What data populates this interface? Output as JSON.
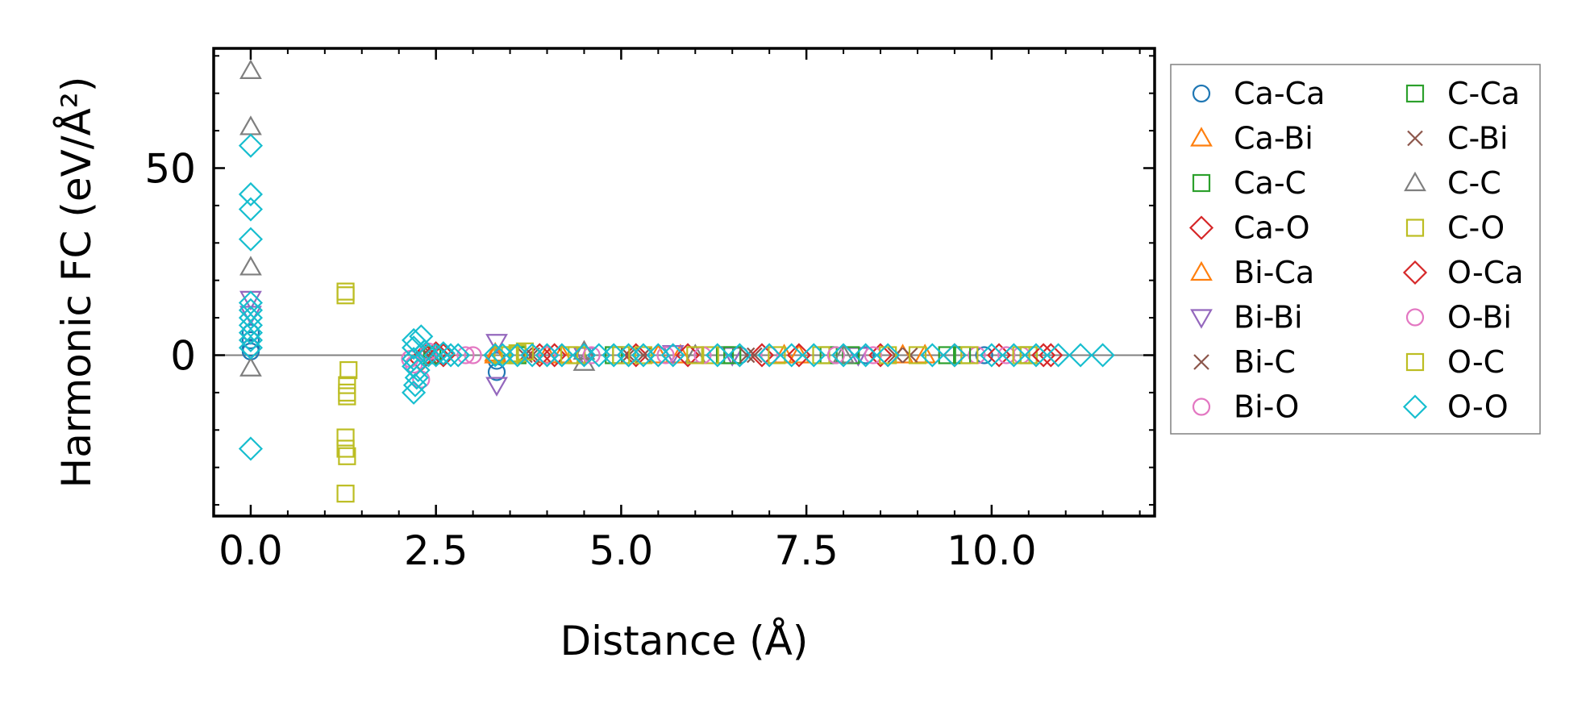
{
  "chart_data": {
    "type": "scatter",
    "title": "",
    "xlabel": "Distance (Å)",
    "ylabel": "Harmonic FC (eV/Å²)",
    "xlim": [
      -0.5,
      12.2
    ],
    "ylim": [
      -43,
      82
    ],
    "x_ticks": [
      0.0,
      2.5,
      5.0,
      7.5,
      10.0
    ],
    "x_tick_labels": [
      "0.0",
      "2.5",
      "5.0",
      "7.5",
      "10.0"
    ],
    "y_ticks": [
      0,
      50
    ],
    "y_tick_labels": [
      "0",
      "50"
    ],
    "zero_line": true,
    "grid": false,
    "legend_position": "outside-right",
    "series": [
      {
        "name": "Ca-Ca",
        "marker": "circle",
        "color": "#1f77b4",
        "points": [
          [
            0,
            4
          ],
          [
            0,
            2
          ],
          [
            0,
            6
          ],
          [
            0,
            1
          ],
          [
            3.32,
            -4.5
          ],
          [
            3.32,
            -1.5
          ],
          [
            4.5,
            0
          ],
          [
            6.6,
            0
          ],
          [
            8.3,
            0
          ],
          [
            9.9,
            0
          ]
        ]
      },
      {
        "name": "Ca-Bi",
        "marker": "triangle-up",
        "color": "#ff7f0e",
        "points": [
          [
            3.3,
            0.5
          ],
          [
            4.0,
            0
          ],
          [
            5.5,
            0
          ],
          [
            7.2,
            0
          ],
          [
            8.8,
            0
          ]
        ]
      },
      {
        "name": "Ca-C",
        "marker": "square",
        "color": "#2ca02c",
        "points": [
          [
            2.45,
            0
          ],
          [
            3.6,
            0
          ],
          [
            5.0,
            0
          ],
          [
            6.4,
            0
          ],
          [
            7.8,
            0
          ],
          [
            9.4,
            0
          ]
        ]
      },
      {
        "name": "Ca-O",
        "marker": "diamond",
        "color": "#d62728",
        "points": [
          [
            2.3,
            -1.2
          ],
          [
            2.5,
            0.5
          ],
          [
            3.9,
            0
          ],
          [
            5.2,
            0
          ],
          [
            6.9,
            0
          ],
          [
            8.5,
            0
          ],
          [
            10.1,
            0
          ],
          [
            10.8,
            0
          ]
        ]
      },
      {
        "name": "Bi-Ca",
        "marker": "triangle-up",
        "color": "#ff7f0e",
        "points": [
          [
            3.3,
            0
          ],
          [
            4.2,
            0
          ],
          [
            5.8,
            0
          ],
          [
            7.4,
            0
          ],
          [
            9.1,
            0
          ]
        ]
      },
      {
        "name": "Bi-Bi",
        "marker": "triangle-down",
        "color": "#9467bd",
        "points": [
          [
            0,
            15
          ],
          [
            0,
            11
          ],
          [
            3.32,
            -8
          ],
          [
            3.32,
            3.5
          ],
          [
            4.5,
            0
          ],
          [
            5.7,
            0.5
          ],
          [
            6.5,
            0
          ],
          [
            8.2,
            0
          ]
        ]
      },
      {
        "name": "Bi-C",
        "marker": "x",
        "color": "#8c564b",
        "points": [
          [
            2.45,
            0
          ],
          [
            3.8,
            0
          ],
          [
            5.3,
            0
          ],
          [
            6.8,
            0
          ],
          [
            8.9,
            0
          ]
        ]
      },
      {
        "name": "Bi-O",
        "marker": "circle",
        "color": "#e377c2",
        "points": [
          [
            2.15,
            -1
          ],
          [
            2.3,
            -6.5
          ],
          [
            2.9,
            0
          ],
          [
            4.0,
            0
          ],
          [
            5.6,
            0
          ],
          [
            7.0,
            0
          ],
          [
            8.4,
            0
          ],
          [
            9.8,
            0
          ],
          [
            10.4,
            0
          ]
        ]
      },
      {
        "name": "C-Ca",
        "marker": "square",
        "color": "#2ca02c",
        "points": [
          [
            2.45,
            0
          ],
          [
            3.6,
            0
          ],
          [
            4.9,
            0
          ],
          [
            6.5,
            0
          ],
          [
            8.1,
            0
          ],
          [
            9.6,
            0
          ],
          [
            10.5,
            0
          ]
        ]
      },
      {
        "name": "C-Bi",
        "marker": "x",
        "color": "#8c564b",
        "points": [
          [
            2.4,
            0
          ],
          [
            3.7,
            0
          ],
          [
            5.1,
            0
          ],
          [
            6.7,
            0
          ],
          [
            8.7,
            0
          ]
        ]
      },
      {
        "name": "C-C",
        "marker": "triangle-up",
        "color": "#7f7f7f",
        "points": [
          [
            0,
            76
          ],
          [
            0,
            61
          ],
          [
            0,
            23.5
          ],
          [
            0,
            -3.5
          ],
          [
            4.5,
            -2
          ],
          [
            4.5,
            1
          ],
          [
            6.0,
            0
          ],
          [
            8.0,
            0
          ]
        ]
      },
      {
        "name": "C-O",
        "marker": "square",
        "color": "#bcbd22",
        "points": [
          [
            1.28,
            16
          ],
          [
            1.28,
            17
          ],
          [
            1.3,
            -8
          ],
          [
            1.3,
            -10
          ],
          [
            1.3,
            -11
          ],
          [
            1.28,
            -22
          ],
          [
            1.28,
            -25
          ],
          [
            1.3,
            -27
          ],
          [
            1.28,
            -37
          ],
          [
            1.32,
            -4
          ],
          [
            3.5,
            0
          ],
          [
            3.6,
            0.5
          ],
          [
            4.4,
            0
          ],
          [
            5.0,
            0
          ],
          [
            6.2,
            0
          ],
          [
            7.7,
            0
          ],
          [
            9.0,
            0
          ],
          [
            10.5,
            0
          ]
        ]
      },
      {
        "name": "O-Ca",
        "marker": "diamond",
        "color": "#d62728",
        "points": [
          [
            2.35,
            0
          ],
          [
            2.6,
            0
          ],
          [
            4.1,
            0
          ],
          [
            5.9,
            0
          ],
          [
            7.4,
            0
          ],
          [
            9.5,
            0
          ],
          [
            10.7,
            0
          ]
        ]
      },
      {
        "name": "O-Bi",
        "marker": "circle",
        "color": "#e377c2",
        "points": [
          [
            2.2,
            -2.5
          ],
          [
            2.4,
            1
          ],
          [
            3.0,
            0
          ],
          [
            4.6,
            0
          ],
          [
            6.1,
            0
          ],
          [
            7.9,
            0
          ],
          [
            10.2,
            0
          ]
        ]
      },
      {
        "name": "O-C",
        "marker": "square",
        "color": "#bcbd22",
        "points": [
          [
            3.4,
            0
          ],
          [
            3.7,
            1
          ],
          [
            4.3,
            0
          ],
          [
            5.3,
            0
          ],
          [
            6.0,
            0
          ],
          [
            7.1,
            0
          ],
          [
            8.6,
            0
          ],
          [
            9.7,
            0
          ],
          [
            10.4,
            0
          ]
        ]
      },
      {
        "name": "O-O",
        "marker": "diamond",
        "color": "#17becf",
        "points": [
          [
            0,
            56
          ],
          [
            0,
            43
          ],
          [
            0,
            39
          ],
          [
            0,
            31
          ],
          [
            0,
            14
          ],
          [
            0,
            12
          ],
          [
            0,
            10
          ],
          [
            0,
            8
          ],
          [
            0,
            6
          ],
          [
            0,
            4
          ],
          [
            0,
            2
          ],
          [
            0,
            -25
          ],
          [
            2.2,
            4
          ],
          [
            2.2,
            2
          ],
          [
            2.2,
            -1
          ],
          [
            2.2,
            -3
          ],
          [
            2.2,
            -10
          ],
          [
            2.22,
            -8
          ],
          [
            2.24,
            -6
          ],
          [
            2.26,
            -4
          ],
          [
            2.3,
            5
          ],
          [
            2.35,
            1
          ],
          [
            2.4,
            0
          ],
          [
            2.5,
            0
          ],
          [
            2.6,
            0.5
          ],
          [
            2.7,
            0
          ],
          [
            2.8,
            0
          ],
          [
            3.3,
            0
          ],
          [
            3.4,
            0
          ],
          [
            3.6,
            0
          ],
          [
            3.8,
            0
          ],
          [
            4.0,
            0
          ],
          [
            4.2,
            0
          ],
          [
            4.5,
            0
          ],
          [
            4.7,
            0
          ],
          [
            4.9,
            0
          ],
          [
            5.1,
            0
          ],
          [
            5.3,
            0
          ],
          [
            5.5,
            0
          ],
          [
            5.7,
            0
          ],
          [
            6.3,
            0
          ],
          [
            6.6,
            0
          ],
          [
            7.0,
            0
          ],
          [
            7.3,
            0
          ],
          [
            7.6,
            0
          ],
          [
            8.0,
            0
          ],
          [
            8.3,
            0
          ],
          [
            8.6,
            0
          ],
          [
            9.2,
            0
          ],
          [
            9.5,
            0
          ],
          [
            10.0,
            0
          ],
          [
            10.3,
            0
          ],
          [
            10.6,
            0
          ],
          [
            10.9,
            0
          ],
          [
            11.2,
            0
          ],
          [
            11.5,
            0
          ]
        ]
      }
    ]
  }
}
